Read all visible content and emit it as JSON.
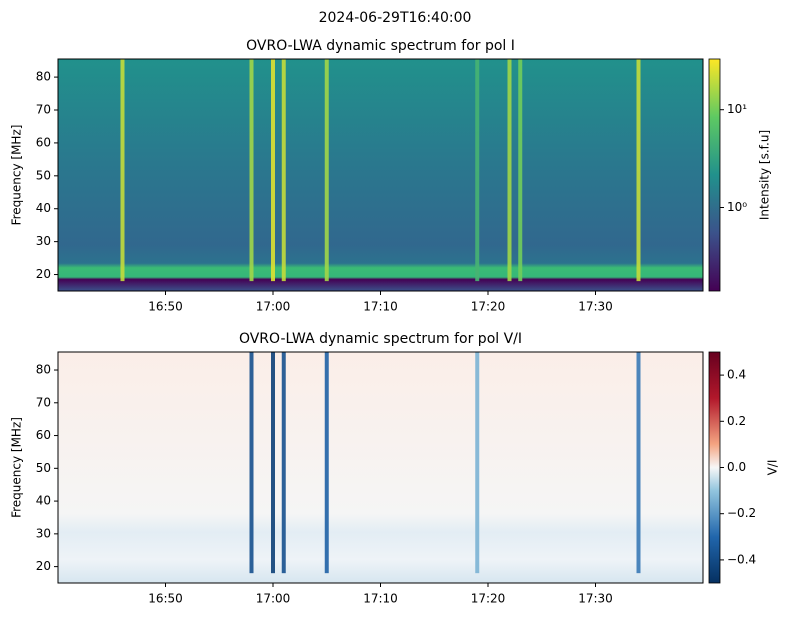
{
  "title": "2024-06-29T16:40:00",
  "chart_data": [
    {
      "type": "heatmap",
      "title": "OVRO-LWA dynamic spectrum for pol I",
      "y_label": "Frequency [MHz]",
      "xlim": [
        "16:40",
        "17:40"
      ],
      "xticks": [
        "16:50",
        "17:00",
        "17:10",
        "17:20",
        "17:30"
      ],
      "ylim": [
        15,
        85.5
      ],
      "yticks": [
        20,
        30,
        40,
        50,
        60,
        70,
        80
      ],
      "colorbar_label": "Intensity [s.f.u]",
      "colormap": "viridis",
      "log_scale": true,
      "zlim": [
        0.14,
        33
      ],
      "zticks": [
        {
          "value": 1,
          "label": "10⁰"
        },
        {
          "value": 10,
          "label": "10¹"
        }
      ],
      "x": [
        "16:46",
        "16:58",
        "17:00",
        "17:01",
        "17:05",
        "17:19",
        "17:22",
        "17:23",
        "17:34"
      ],
      "values": [
        20,
        15,
        25,
        20,
        15,
        5,
        15,
        10,
        20
      ]
    },
    {
      "type": "heatmap",
      "title": "OVRO-LWA dynamic spectrum for pol V/I",
      "y_label": "Frequency [MHz]",
      "xlim": [
        "16:40",
        "17:40"
      ],
      "xticks": [
        "16:50",
        "17:00",
        "17:10",
        "17:20",
        "17:30"
      ],
      "ylim": [
        15,
        85.5
      ],
      "yticks": [
        20,
        30,
        40,
        50,
        60,
        70,
        80
      ],
      "colorbar_label": "V/I",
      "colormap": "RdBu_r",
      "log_scale": false,
      "zlim": [
        -0.5,
        0.5
      ],
      "zticks": [
        {
          "value": -0.4,
          "label": "−0.4"
        },
        {
          "value": -0.2,
          "label": "−0.2"
        },
        {
          "value": 0,
          "label": "0.0"
        },
        0.2,
        0.4
      ],
      "x": [
        "16:58",
        "17:00",
        "17:01",
        "17:05",
        "17:19",
        "17:34"
      ],
      "values": [
        -0.4,
        -0.45,
        -0.4,
        -0.35,
        -0.2,
        -0.3
      ]
    }
  ]
}
